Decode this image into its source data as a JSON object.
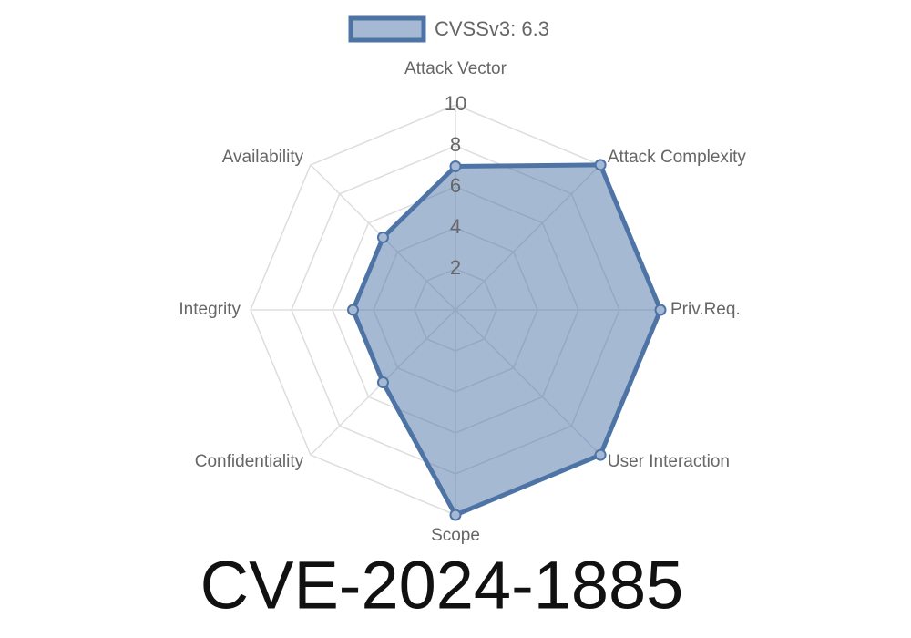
{
  "chart_data": {
    "type": "radar",
    "title": "CVE-2024-1885",
    "categories": [
      "Attack Vector",
      "Attack Complexity",
      "Priv.Req.",
      "User Interaction",
      "Scope",
      "Confidentiality",
      "Integrity",
      "Availability"
    ],
    "series": [
      {
        "name": "CVSSv3: 6.3",
        "color": "#4e74a6",
        "values": [
          7,
          10,
          10,
          10,
          10,
          5,
          5,
          5
        ]
      }
    ],
    "ylim": [
      0,
      10
    ],
    "yticks": [
      2,
      4,
      6,
      8,
      10
    ],
    "grid": true,
    "legend": "top"
  }
}
